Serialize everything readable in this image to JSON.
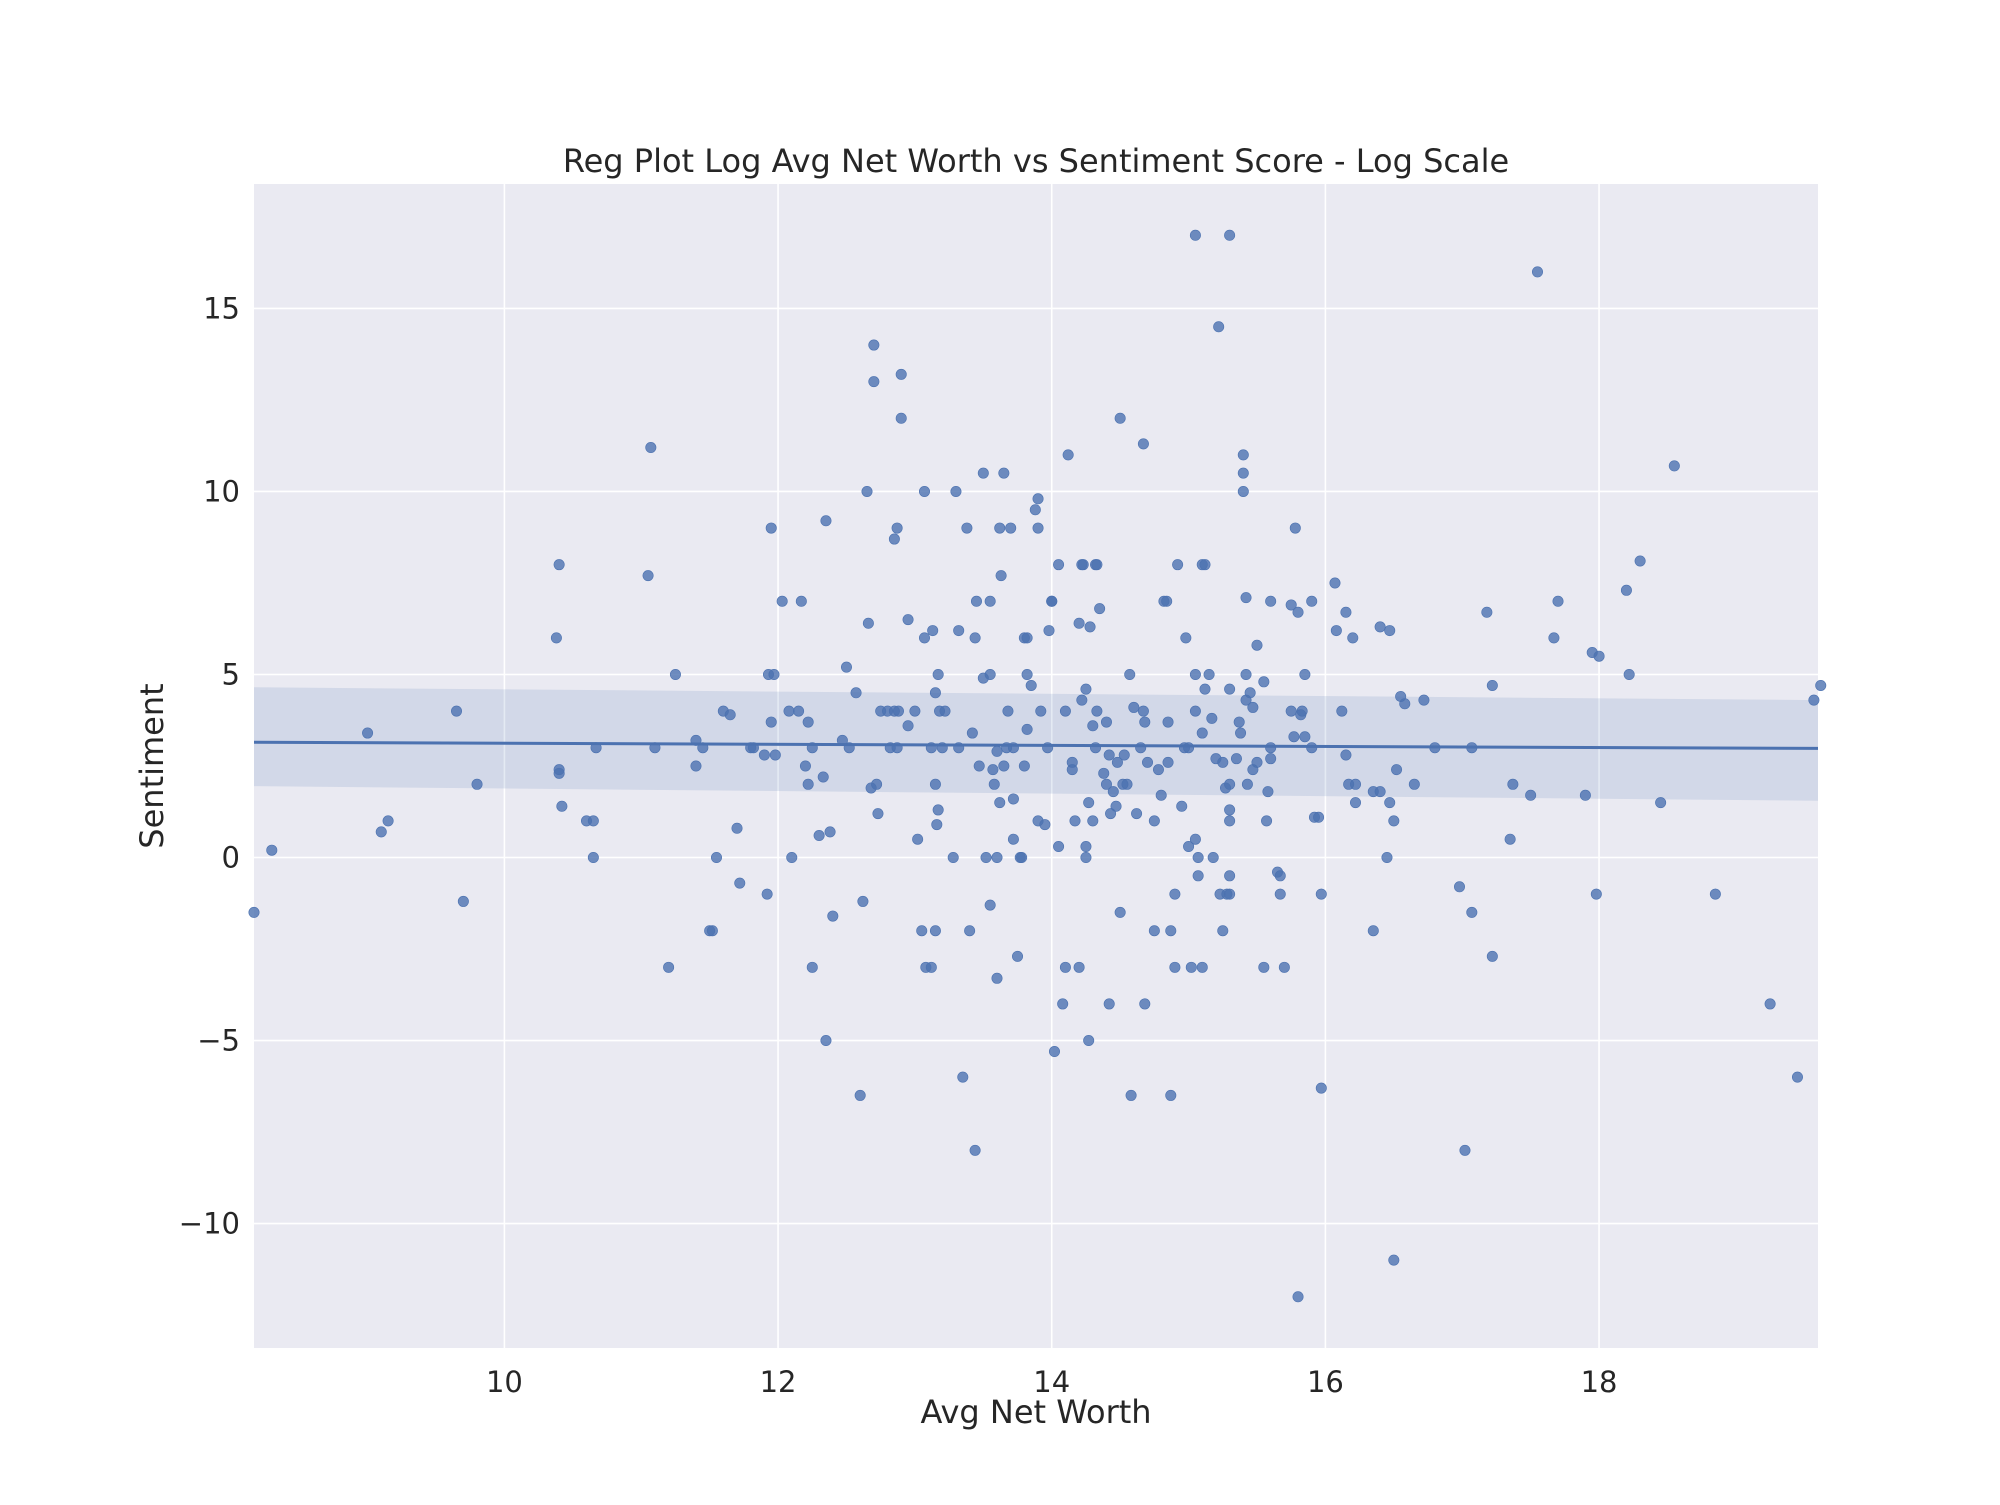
{
  "chart_data": {
    "type": "scatter",
    "title": "Reg Plot Log Avg Net Worth vs Sentiment Score - Log Scale",
    "xlabel": "Avg Net Worth",
    "ylabel": "Sentiment",
    "xlim": [
      8.17,
      19.6
    ],
    "ylim": [
      -13.4,
      18.4
    ],
    "xticks": [
      10,
      12,
      14,
      16,
      18
    ],
    "yticks": [
      -10,
      -5,
      0,
      5,
      10,
      15
    ],
    "xtick_labels": [
      "10",
      "12",
      "14",
      "16",
      "18"
    ],
    "ytick_labels": [
      "−10",
      "−5",
      "0",
      "5",
      "10",
      "15"
    ],
    "grid": true,
    "regression": {
      "x": [
        8.17,
        19.6
      ],
      "y": [
        3.15,
        2.98
      ],
      "ci_upper": [
        4.65,
        4.3
      ],
      "ci_lower": [
        1.95,
        1.55
      ]
    },
    "colors": {
      "background": "#eaeaf2",
      "grid": "#ffffff",
      "point": "#4c72b0",
      "line": "#4c72b0",
      "band": "#4c72b0"
    },
    "points": [
      [
        8.17,
        -1.5
      ],
      [
        8.3,
        0.2
      ],
      [
        9.0,
        3.4
      ],
      [
        9.1,
        0.7
      ],
      [
        9.15,
        1.0
      ],
      [
        9.65,
        4.0
      ],
      [
        9.7,
        -1.2
      ],
      [
        9.8,
        2.0
      ],
      [
        10.4,
        8.0
      ],
      [
        10.38,
        6.0
      ],
      [
        10.4,
        2.4
      ],
      [
        10.4,
        2.3
      ],
      [
        10.42,
        1.4
      ],
      [
        10.6,
        1.0
      ],
      [
        10.65,
        0.0
      ],
      [
        10.65,
        1.0
      ],
      [
        10.67,
        3.0
      ],
      [
        11.05,
        7.7
      ],
      [
        11.07,
        11.2
      ],
      [
        11.1,
        3.0
      ],
      [
        11.2,
        -3.0
      ],
      [
        11.25,
        5.0
      ],
      [
        11.4,
        2.5
      ],
      [
        11.4,
        3.2
      ],
      [
        11.45,
        3.0
      ],
      [
        11.5,
        -2.0
      ],
      [
        11.52,
        -2.0
      ],
      [
        11.55,
        0.0
      ],
      [
        11.6,
        4.0
      ],
      [
        11.65,
        3.9
      ],
      [
        11.7,
        0.8
      ],
      [
        11.72,
        -0.7
      ],
      [
        11.8,
        3.0
      ],
      [
        11.82,
        3.0
      ],
      [
        11.9,
        2.8
      ],
      [
        11.93,
        5.0
      ],
      [
        11.95,
        9.0
      ],
      [
        11.97,
        5.0
      ],
      [
        11.95,
        3.7
      ],
      [
        11.98,
        2.8
      ],
      [
        11.92,
        -1.0
      ],
      [
        12.03,
        7.0
      ],
      [
        12.08,
        4.0
      ],
      [
        12.1,
        0.0
      ],
      [
        12.15,
        4.0
      ],
      [
        12.17,
        7.0
      ],
      [
        12.2,
        2.5
      ],
      [
        12.22,
        3.7
      ],
      [
        12.22,
        2.0
      ],
      [
        12.25,
        3.0
      ],
      [
        12.25,
        -3.0
      ],
      [
        12.3,
        0.6
      ],
      [
        12.33,
        2.2
      ],
      [
        12.35,
        9.2
      ],
      [
        12.35,
        -5.0
      ],
      [
        12.38,
        0.7
      ],
      [
        12.4,
        -1.6
      ],
      [
        12.47,
        3.2
      ],
      [
        12.5,
        5.2
      ],
      [
        12.52,
        3.0
      ],
      [
        12.57,
        4.5
      ],
      [
        12.6,
        -6.5
      ],
      [
        12.62,
        -1.2
      ],
      [
        12.65,
        10.0
      ],
      [
        12.66,
        6.4
      ],
      [
        12.68,
        1.9
      ],
      [
        12.7,
        14.0
      ],
      [
        12.7,
        13.0
      ],
      [
        12.72,
        2.0
      ],
      [
        12.73,
        1.2
      ],
      [
        12.75,
        4.0
      ],
      [
        12.8,
        4.0
      ],
      [
        12.82,
        3.0
      ],
      [
        12.85,
        8.7
      ],
      [
        12.87,
        9.0
      ],
      [
        12.85,
        4.0
      ],
      [
        12.88,
        4.0
      ],
      [
        12.87,
        3.0
      ],
      [
        12.9,
        13.2
      ],
      [
        12.9,
        12.0
      ],
      [
        12.95,
        3.6
      ],
      [
        12.95,
        6.5
      ],
      [
        13.0,
        4.0
      ],
      [
        13.02,
        0.5
      ],
      [
        13.07,
        10.0
      ],
      [
        13.07,
        6.0
      ],
      [
        13.05,
        -2.0
      ],
      [
        13.08,
        -3.0
      ],
      [
        13.12,
        -3.0
      ],
      [
        13.12,
        3.0
      ],
      [
        13.13,
        6.2
      ],
      [
        13.15,
        2.0
      ],
      [
        13.15,
        4.5
      ],
      [
        13.15,
        -2.0
      ],
      [
        13.17,
        1.3
      ],
      [
        13.16,
        0.9
      ],
      [
        13.18,
        4.0
      ],
      [
        13.17,
        5.0
      ],
      [
        13.22,
        4.0
      ],
      [
        13.2,
        3.0
      ],
      [
        13.28,
        0.0
      ],
      [
        13.3,
        10.0
      ],
      [
        13.32,
        6.2
      ],
      [
        13.32,
        3.0
      ],
      [
        13.38,
        9.0
      ],
      [
        13.4,
        -2.0
      ],
      [
        13.35,
        -6.0
      ],
      [
        13.42,
        3.4
      ],
      [
        13.44,
        6.0
      ],
      [
        13.45,
        7.0
      ],
      [
        13.44,
        -8.0
      ],
      [
        13.47,
        2.5
      ],
      [
        13.5,
        4.9
      ],
      [
        13.5,
        10.5
      ],
      [
        13.52,
        0.0
      ],
      [
        13.55,
        5.0
      ],
      [
        13.55,
        7.0
      ],
      [
        13.58,
        2.0
      ],
      [
        13.57,
        2.4
      ],
      [
        13.6,
        2.9
      ],
      [
        13.6,
        0.0
      ],
      [
        13.62,
        9.0
      ],
      [
        13.62,
        1.5
      ],
      [
        13.6,
        -3.3
      ],
      [
        13.55,
        -1.3
      ],
      [
        13.63,
        7.7
      ],
      [
        13.65,
        10.5
      ],
      [
        13.67,
        3.0
      ],
      [
        13.65,
        2.5
      ],
      [
        13.68,
        4.0
      ],
      [
        13.7,
        9.0
      ],
      [
        13.72,
        0.5
      ],
      [
        13.72,
        1.6
      ],
      [
        13.72,
        3.0
      ],
      [
        13.75,
        -2.7
      ],
      [
        13.77,
        0.0
      ],
      [
        13.78,
        0.0
      ],
      [
        13.8,
        6.0
      ],
      [
        13.82,
        6.0
      ],
      [
        13.82,
        5.0
      ],
      [
        13.85,
        4.7
      ],
      [
        13.8,
        2.5
      ],
      [
        13.82,
        3.5
      ],
      [
        13.88,
        9.5
      ],
      [
        13.9,
        9.8
      ],
      [
        13.9,
        9.0
      ],
      [
        13.92,
        4.0
      ],
      [
        13.9,
        1.0
      ],
      [
        13.95,
        0.9
      ],
      [
        13.97,
        3.0
      ],
      [
        13.98,
        6.2
      ],
      [
        14.0,
        7.0
      ],
      [
        14.0,
        7.0
      ],
      [
        14.02,
        -5.3
      ],
      [
        14.05,
        0.3
      ],
      [
        14.05,
        8.0
      ],
      [
        14.08,
        -4.0
      ],
      [
        14.1,
        4.0
      ],
      [
        14.1,
        -3.0
      ],
      [
        14.12,
        11.0
      ],
      [
        14.15,
        2.6
      ],
      [
        14.15,
        2.4
      ],
      [
        14.17,
        1.0
      ],
      [
        14.2,
        -3.0
      ],
      [
        14.22,
        8.0
      ],
      [
        14.2,
        6.4
      ],
      [
        14.22,
        4.3
      ],
      [
        14.23,
        8.0
      ],
      [
        14.25,
        4.6
      ],
      [
        14.25,
        0.3
      ],
      [
        14.25,
        0.0
      ],
      [
        14.27,
        1.5
      ],
      [
        14.27,
        -5.0
      ],
      [
        14.28,
        6.3
      ],
      [
        14.3,
        3.6
      ],
      [
        14.3,
        1.0
      ],
      [
        14.32,
        8.0
      ],
      [
        14.33,
        8.0
      ],
      [
        14.33,
        4.0
      ],
      [
        14.35,
        6.8
      ],
      [
        14.32,
        3.0
      ],
      [
        14.38,
        2.3
      ],
      [
        14.4,
        3.7
      ],
      [
        14.4,
        2.0
      ],
      [
        14.42,
        2.8
      ],
      [
        14.42,
        -4.0
      ],
      [
        14.43,
        1.2
      ],
      [
        14.45,
        1.8
      ],
      [
        14.47,
        1.4
      ],
      [
        14.48,
        2.6
      ],
      [
        14.5,
        12.0
      ],
      [
        14.5,
        -1.5
      ],
      [
        14.52,
        2.0
      ],
      [
        14.53,
        2.8
      ],
      [
        14.55,
        2.0
      ],
      [
        14.57,
        5.0
      ],
      [
        14.58,
        -6.5
      ],
      [
        14.6,
        4.1
      ],
      [
        14.62,
        1.2
      ],
      [
        14.65,
        3.0
      ],
      [
        14.67,
        11.3
      ],
      [
        14.67,
        4.0
      ],
      [
        14.68,
        3.7
      ],
      [
        14.68,
        -4.0
      ],
      [
        14.7,
        2.6
      ],
      [
        14.75,
        -2.0
      ],
      [
        14.75,
        1.0
      ],
      [
        14.78,
        2.4
      ],
      [
        14.8,
        1.7
      ],
      [
        14.82,
        7.0
      ],
      [
        14.84,
        7.0
      ],
      [
        14.85,
        2.6
      ],
      [
        14.85,
        3.7
      ],
      [
        14.87,
        -2.0
      ],
      [
        14.87,
        -6.5
      ],
      [
        14.9,
        -1.0
      ],
      [
        14.9,
        -3.0
      ],
      [
        14.92,
        8.0
      ],
      [
        14.95,
        1.4
      ],
      [
        14.97,
        3.0
      ],
      [
        14.98,
        6.0
      ],
      [
        15.0,
        0.3
      ],
      [
        15.0,
        3.0
      ],
      [
        15.02,
        -3.0
      ],
      [
        15.05,
        17.0
      ],
      [
        15.05,
        5.0
      ],
      [
        15.05,
        4.0
      ],
      [
        15.07,
        0.0
      ],
      [
        15.07,
        -0.5
      ],
      [
        15.05,
        0.5
      ],
      [
        15.1,
        8.0
      ],
      [
        15.12,
        8.0
      ],
      [
        15.12,
        4.6
      ],
      [
        15.1,
        3.4
      ],
      [
        15.1,
        -3.0
      ],
      [
        15.15,
        5.0
      ],
      [
        15.17,
        3.8
      ],
      [
        15.18,
        0.0
      ],
      [
        15.2,
        2.7
      ],
      [
        15.22,
        14.5
      ],
      [
        15.23,
        -1.0
      ],
      [
        15.25,
        -2.0
      ],
      [
        15.25,
        2.6
      ],
      [
        15.27,
        1.9
      ],
      [
        15.28,
        -1.0
      ],
      [
        15.3,
        17.0
      ],
      [
        15.3,
        4.6
      ],
      [
        15.3,
        2.0
      ],
      [
        15.3,
        1.3
      ],
      [
        15.3,
        1.0
      ],
      [
        15.3,
        -0.5
      ],
      [
        15.3,
        -1.0
      ],
      [
        15.35,
        2.7
      ],
      [
        15.37,
        3.7
      ],
      [
        15.38,
        3.4
      ],
      [
        15.4,
        11.0
      ],
      [
        15.4,
        10.5
      ],
      [
        15.4,
        10.0
      ],
      [
        15.42,
        7.1
      ],
      [
        15.42,
        5.0
      ],
      [
        15.42,
        4.3
      ],
      [
        15.43,
        2.0
      ],
      [
        15.45,
        4.5
      ],
      [
        15.47,
        4.1
      ],
      [
        15.47,
        2.4
      ],
      [
        15.5,
        5.8
      ],
      [
        15.5,
        2.6
      ],
      [
        15.55,
        4.8
      ],
      [
        15.55,
        -3.0
      ],
      [
        15.57,
        1.0
      ],
      [
        15.58,
        1.8
      ],
      [
        15.6,
        7.0
      ],
      [
        15.6,
        3.0
      ],
      [
        15.6,
        2.7
      ],
      [
        15.65,
        -0.4
      ],
      [
        15.67,
        -0.5
      ],
      [
        15.67,
        -1.0
      ],
      [
        15.7,
        -3.0
      ],
      [
        15.75,
        6.9
      ],
      [
        15.75,
        4.0
      ],
      [
        15.77,
        3.3
      ],
      [
        15.78,
        9.0
      ],
      [
        15.8,
        6.7
      ],
      [
        15.82,
        3.9
      ],
      [
        15.83,
        4.0
      ],
      [
        15.85,
        3.3
      ],
      [
        15.85,
        5.0
      ],
      [
        15.9,
        7.0
      ],
      [
        15.9,
        3.0
      ],
      [
        15.92,
        1.1
      ],
      [
        15.95,
        1.1
      ],
      [
        15.97,
        -1.0
      ],
      [
        15.97,
        -6.3
      ],
      [
        15.8,
        -12.0
      ],
      [
        16.07,
        7.5
      ],
      [
        16.08,
        6.2
      ],
      [
        16.12,
        4.0
      ],
      [
        16.15,
        6.7
      ],
      [
        16.15,
        2.8
      ],
      [
        16.17,
        2.0
      ],
      [
        16.2,
        6.0
      ],
      [
        16.22,
        2.0
      ],
      [
        16.22,
        1.5
      ],
      [
        16.35,
        -2.0
      ],
      [
        16.35,
        1.8
      ],
      [
        16.4,
        6.3
      ],
      [
        16.4,
        1.8
      ],
      [
        16.45,
        0.0
      ],
      [
        16.47,
        6.2
      ],
      [
        16.47,
        1.5
      ],
      [
        16.5,
        1.0
      ],
      [
        16.5,
        -11.0
      ],
      [
        16.52,
        2.4
      ],
      [
        16.55,
        4.4
      ],
      [
        16.58,
        4.2
      ],
      [
        16.65,
        2.0
      ],
      [
        16.72,
        4.3
      ],
      [
        16.8,
        3.0
      ],
      [
        16.98,
        -0.8
      ],
      [
        17.02,
        -8.0
      ],
      [
        17.07,
        3.0
      ],
      [
        17.07,
        -1.5
      ],
      [
        17.18,
        6.7
      ],
      [
        17.22,
        4.7
      ],
      [
        17.22,
        -2.7
      ],
      [
        17.35,
        0.5
      ],
      [
        17.37,
        2.0
      ],
      [
        17.5,
        1.7
      ],
      [
        17.55,
        16.0
      ],
      [
        17.67,
        6.0
      ],
      [
        17.7,
        7.0
      ],
      [
        17.9,
        1.7
      ],
      [
        17.95,
        5.6
      ],
      [
        17.98,
        -1.0
      ],
      [
        18.0,
        5.5
      ],
      [
        18.2,
        7.3
      ],
      [
        18.22,
        5.0
      ],
      [
        18.3,
        8.1
      ],
      [
        18.45,
        1.5
      ],
      [
        18.55,
        10.7
      ],
      [
        18.85,
        -1.0
      ],
      [
        19.25,
        -4.0
      ],
      [
        19.45,
        -6.0
      ],
      [
        19.57,
        4.3
      ],
      [
        19.62,
        4.7
      ]
    ]
  }
}
